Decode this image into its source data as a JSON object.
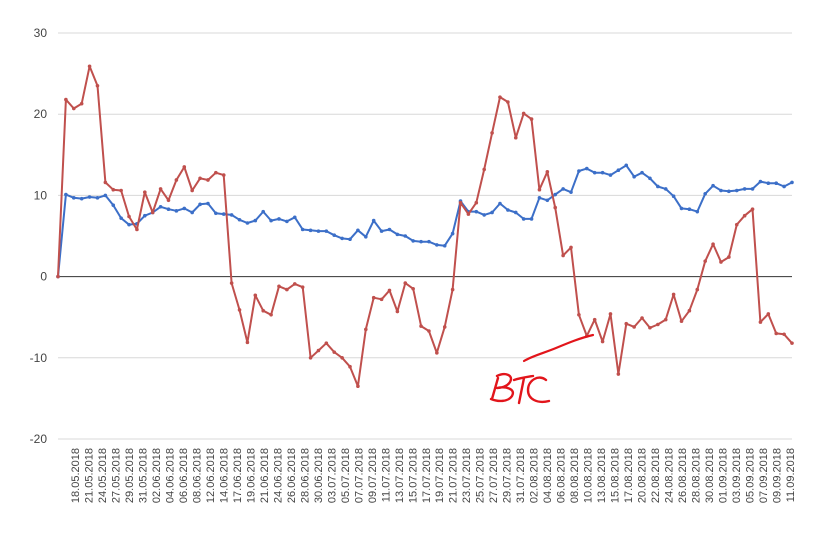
{
  "chart_data": {
    "type": "line",
    "title": "",
    "xlabel": "",
    "ylabel": "",
    "ylim": [
      -20,
      30
    ],
    "yticks": [
      -20,
      -10,
      0,
      10,
      20,
      30
    ],
    "grid": true,
    "x_tick_labels": [
      "18.05.2018",
      "21.05.2018",
      "24.05.2018",
      "27.05.2018",
      "29.05.2018",
      "31.05.2018",
      "02.06.2018",
      "04.06.2018",
      "06.06.2018",
      "08.06.2018",
      "12.06.2018",
      "14.06.2018",
      "17.06.2018",
      "19.06.2018",
      "21.06.2018",
      "24.06.2018",
      "26.06.2018",
      "28.06.2018",
      "30.06.2018",
      "03.07.2018",
      "05.07.2018",
      "07.07.2018",
      "09.07.2018",
      "11.07.2018",
      "13.07.2018",
      "15.07.2018",
      "17.07.2018",
      "19.07.2018",
      "21.07.2018",
      "23.07.2018",
      "25.07.2018",
      "27.07.2018",
      "29.07.2018",
      "31.07.2018",
      "02.08.2018",
      "04.08.2018",
      "06.08.2018",
      "08.08.2018",
      "10.08.2018",
      "13.08.2018",
      "15.08.2018",
      "17.08.2018",
      "20.08.2018",
      "22.08.2018",
      "24.08.2018",
      "26.08.2018",
      "28.08.2018",
      "30.08.2018",
      "01.09.2018",
      "03.09.2018",
      "05.09.2018",
      "07.09.2018",
      "09.09.2018",
      "11.09.2018"
    ],
    "series": [
      {
        "color": "#3c6fc8",
        "values": [
          0,
          10.1,
          9.7,
          9.6,
          9.8,
          9.7,
          10.0,
          8.8,
          7.2,
          6.4,
          6.5,
          7.5,
          7.9,
          8.6,
          8.3,
          8.1,
          8.4,
          7.9,
          8.9,
          9.0,
          7.8,
          7.7,
          7.6,
          7.0,
          6.6,
          6.9,
          8.0,
          6.9,
          7.1,
          6.8,
          7.3,
          5.8,
          5.7,
          5.6,
          5.6,
          5.1,
          4.7,
          4.6,
          5.7,
          4.9,
          6.9,
          5.6,
          5.8,
          5.2,
          5.0,
          4.4,
          4.3,
          4.3,
          3.9,
          3.8,
          5.3,
          9.3,
          8.0,
          8.0,
          7.6,
          7.9,
          9.0,
          8.2,
          7.9,
          7.1,
          7.1,
          9.7,
          9.4,
          10.1,
          10.8,
          10.4,
          13.0,
          13.3,
          12.8,
          12.8,
          12.5,
          13.1,
          13.7,
          12.3,
          12.8,
          12.1,
          11.1,
          10.8,
          9.9,
          8.4,
          8.3,
          8.0,
          10.2,
          11.2,
          10.6,
          10.5,
          10.6,
          10.8,
          10.8,
          11.7,
          11.5,
          11.5,
          11.1,
          11.6
        ]
      },
      {
        "color": "#c0504d",
        "values": [
          0,
          21.8,
          20.7,
          21.3,
          25.9,
          23.5,
          11.6,
          10.7,
          10.6,
          7.4,
          5.8,
          10.4,
          7.9,
          10.8,
          9.4,
          11.9,
          13.5,
          10.6,
          12.1,
          11.9,
          12.8,
          12.5,
          -0.8,
          -4.1,
          -8.1,
          -2.3,
          -4.2,
          -4.7,
          -1.2,
          -1.6,
          -0.9,
          -1.3,
          -10.0,
          -9.1,
          -8.2,
          -9.3,
          -10.0,
          -11.1,
          -13.5,
          -6.5,
          -2.6,
          -2.8,
          -1.7,
          -4.3,
          -0.8,
          -1.5,
          -6.1,
          -6.7,
          -9.4,
          -6.2,
          -1.6,
          9.1,
          7.7,
          9.1,
          13.2,
          17.7,
          22.1,
          21.5,
          17.1,
          20.1,
          19.4,
          10.7,
          12.9,
          8.5,
          2.6,
          3.6,
          -4.7,
          -7.3,
          -5.3,
          -8.0,
          -4.6,
          -12.0,
          -5.8,
          -6.2,
          -5.1,
          -6.3,
          -5.9,
          -5.3,
          -2.2,
          -5.5,
          -4.2,
          -1.6,
          1.9,
          4.0,
          1.8,
          2.4,
          6.4,
          7.5,
          8.3,
          -5.6,
          -4.6,
          -7.0,
          -7.1,
          -8.2
        ]
      }
    ]
  },
  "annotation": {
    "text": "BTC",
    "color": "#e2151b"
  }
}
